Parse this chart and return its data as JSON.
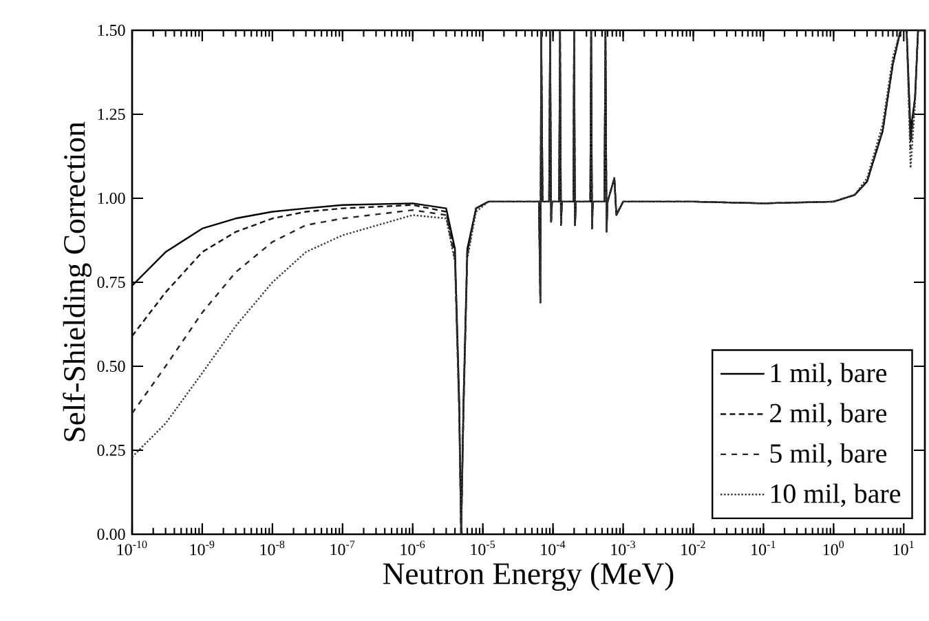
{
  "chart_data": {
    "type": "line",
    "xlabel": "Neutron Energy (MeV)",
    "ylabel": "Self-Shielding Correction",
    "log": "x",
    "legend": "bottom right",
    "marker": "none",
    "xlim": [
      1e-10,
      20
    ],
    "ylim": [
      0,
      1.5
    ],
    "xticks": [
      {
        "value": 1e-10,
        "label": "10$^{-10}$"
      },
      {
        "value": 1e-09,
        "label": "10$^{-9}$"
      },
      {
        "value": 1e-08,
        "label": "10$^{-8}$"
      },
      {
        "value": 1e-07,
        "label": "10$^{-7}$"
      },
      {
        "value": 1e-06,
        "label": "10$^{-6}$"
      },
      {
        "value": 1e-05,
        "label": "10$^{-5}$"
      },
      {
        "value": 0.0001,
        "label": "10$^{-4}$"
      },
      {
        "value": 0.001,
        "label": "10$^{-3}$"
      },
      {
        "value": 0.01,
        "label": "10$^{-2}$"
      },
      {
        "value": 0.1,
        "label": "10$^{-1}$"
      },
      {
        "value": 1,
        "label": "10$^{0}$"
      },
      {
        "value": 10,
        "label": "10$^{1}$"
      }
    ],
    "yticks": [
      {
        "value": 0,
        "label": "0.00"
      },
      {
        "value": 0.25,
        "label": "0.25"
      },
      {
        "value": 0.5,
        "label": "0.50"
      },
      {
        "value": 0.75,
        "label": "0.75"
      },
      {
        "value": 1,
        "label": "1.00"
      },
      {
        "value": 1.25,
        "label": "1.25"
      },
      {
        "value": 1.5,
        "label": "1.50"
      }
    ],
    "x": [
      1e-10,
      3e-10,
      1e-09,
      3e-09,
      1e-08,
      3e-08,
      1e-07,
      1e-06,
      3e-06,
      4e-06,
      4.6e-06,
      4.9e-06,
      5.3e-06,
      6e-06,
      8e-06,
      1.2e-05,
      3e-05,
      6.3e-05,
      6.6e-05,
      6.8e-05,
      7.1e-05,
      8.8e-05,
      9.1e-05,
      9.4e-05,
      9.7e-05,
      0.000122,
      0.000126,
      0.00013,
      0.000134,
      0.000195,
      0.0002,
      0.000206,
      0.000212,
      0.00034,
      0.00035,
      0.00036,
      0.00037,
      0.00054,
      0.00056,
      0.00058,
      0.0006,
      0.00075,
      0.0008,
      0.001,
      0.01,
      0.1,
      1,
      2,
      3,
      5,
      7,
      9,
      11,
      12.5,
      14.5,
      16,
      20
    ],
    "series": [
      {
        "name": "1 mil, bare",
        "color": "#000000",
        "line_style": "solid",
        "values": [
          0.74,
          0.84,
          0.91,
          0.94,
          0.96,
          0.97,
          0.98,
          0.985,
          0.97,
          0.85,
          0.4,
          0.0,
          0.4,
          0.85,
          0.97,
          0.99,
          0.99,
          0.99,
          0.69,
          1.5,
          0.99,
          0.99,
          1.5,
          0.93,
          0.99,
          0.99,
          1.5,
          0.92,
          0.99,
          0.99,
          1.5,
          0.92,
          0.99,
          0.99,
          1.5,
          0.91,
          0.99,
          0.99,
          1.5,
          0.9,
          0.99,
          1.06,
          0.95,
          0.99,
          0.99,
          0.985,
          0.99,
          1.01,
          1.05,
          1.2,
          1.4,
          1.5,
          1.5,
          1.2,
          1.3,
          1.5,
          1.5
        ]
      },
      {
        "name": "2 mil, bare",
        "color": "#141414",
        "line_style": "dashed",
        "values": [
          0.59,
          0.72,
          0.84,
          0.9,
          0.94,
          0.96,
          0.97,
          0.98,
          0.96,
          0.83,
          0.38,
          0.0,
          0.38,
          0.84,
          0.97,
          0.99,
          0.99,
          0.99,
          0.69,
          1.5,
          0.99,
          0.99,
          1.5,
          0.93,
          0.99,
          0.99,
          1.5,
          0.92,
          0.99,
          0.99,
          1.5,
          0.92,
          0.99,
          0.99,
          1.5,
          0.91,
          0.99,
          0.99,
          1.5,
          0.9,
          0.99,
          1.06,
          0.95,
          0.99,
          0.99,
          0.985,
          0.99,
          1.01,
          1.05,
          1.2,
          1.4,
          1.5,
          1.5,
          1.17,
          1.3,
          1.5,
          1.5
        ]
      },
      {
        "name": "5 mil, bare",
        "color": "#262626",
        "line_style": "long dashed",
        "values": [
          0.36,
          0.5,
          0.66,
          0.78,
          0.87,
          0.92,
          0.94,
          0.965,
          0.95,
          0.82,
          0.36,
          0.0,
          0.37,
          0.83,
          0.97,
          0.99,
          0.99,
          0.99,
          0.69,
          1.5,
          0.99,
          0.99,
          1.5,
          0.93,
          0.99,
          0.99,
          1.5,
          0.92,
          0.99,
          0.99,
          1.5,
          0.92,
          0.99,
          0.99,
          1.5,
          0.91,
          0.99,
          0.99,
          1.5,
          0.9,
          0.99,
          1.06,
          0.95,
          0.99,
          0.99,
          0.985,
          0.99,
          1.01,
          1.05,
          1.2,
          1.4,
          1.5,
          1.5,
          1.15,
          1.3,
          1.5,
          1.5
        ]
      },
      {
        "name": "10 mil, bare",
        "color": "#383838",
        "line_style": "dotted",
        "values": [
          0.23,
          0.33,
          0.48,
          0.62,
          0.75,
          0.84,
          0.89,
          0.95,
          0.94,
          0.81,
          0.35,
          0.0,
          0.36,
          0.82,
          0.96,
          0.99,
          0.99,
          0.99,
          0.69,
          1.5,
          0.99,
          0.99,
          1.5,
          0.93,
          0.99,
          0.99,
          1.5,
          0.92,
          0.99,
          0.99,
          1.5,
          0.92,
          0.99,
          0.99,
          1.5,
          0.91,
          0.99,
          0.99,
          1.5,
          0.9,
          0.99,
          1.06,
          0.95,
          0.99,
          0.99,
          0.985,
          0.99,
          1.01,
          1.06,
          1.22,
          1.42,
          1.5,
          1.5,
          1.09,
          1.28,
          1.5,
          1.5
        ]
      }
    ]
  }
}
